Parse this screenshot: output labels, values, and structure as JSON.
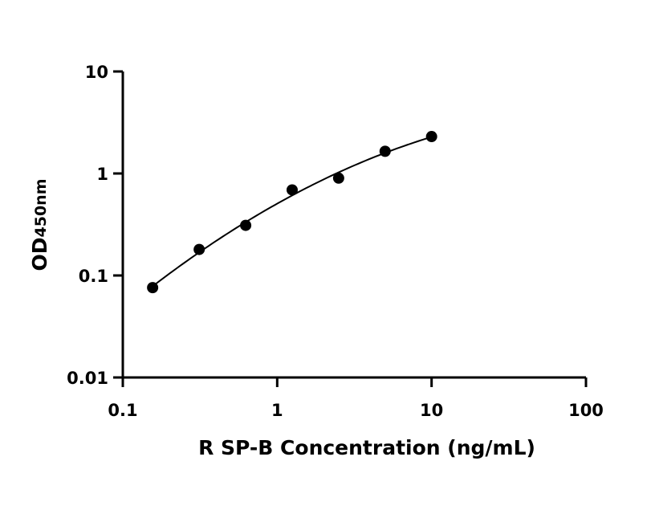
{
  "chart_data": {
    "type": "scatter",
    "title": "",
    "xlabel": "R SP-B Concentration (ng/mL)",
    "ylabel_main": "OD",
    "ylabel_sub": "450nm",
    "xscale": "log",
    "yscale": "log",
    "xlim": [
      0.1,
      100
    ],
    "ylim": [
      0.01,
      10
    ],
    "xticks": [
      0.1,
      1,
      10,
      100
    ],
    "xtick_labels": [
      "0.1",
      "1",
      "10",
      "100"
    ],
    "yticks": [
      0.01,
      0.1,
      1,
      10
    ],
    "ytick_labels": [
      "0.01",
      "0.1",
      "1",
      "10"
    ],
    "grid": false,
    "legend": "none",
    "series": [
      {
        "x": [
          0.156,
          0.3125,
          0.625,
          1.25,
          2.5,
          5,
          10
        ],
        "y": [
          0.076,
          0.18,
          0.31,
          0.69,
          0.9,
          1.65,
          2.3
        ],
        "fit_curve": true
      }
    ],
    "colors": {
      "points": "#000000",
      "curve": "#000000",
      "axes": "#000000"
    }
  }
}
